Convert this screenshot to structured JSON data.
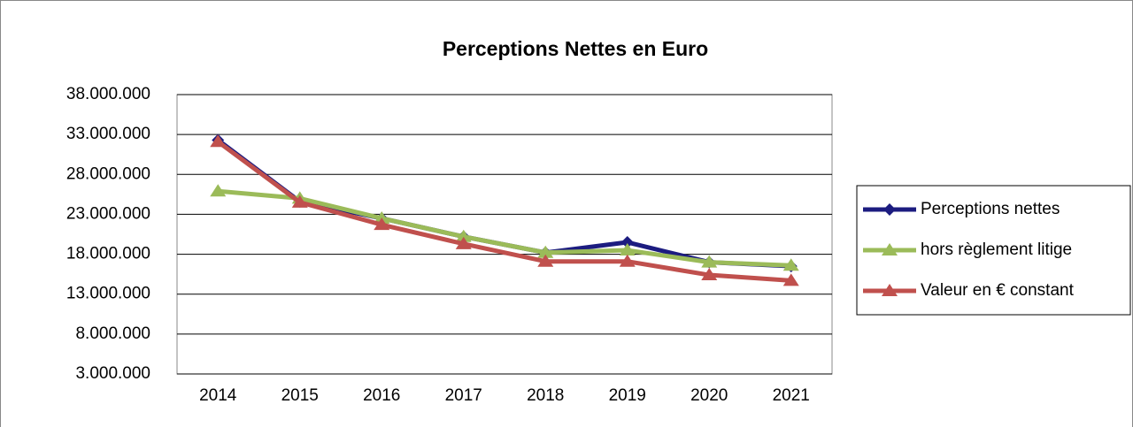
{
  "chart_data": {
    "type": "line",
    "title": "Perceptions Nettes en Euro",
    "categories": [
      "2014",
      "2015",
      "2016",
      "2017",
      "2018",
      "2019",
      "2020",
      "2021"
    ],
    "series": [
      {
        "name": "Perceptions nettes",
        "color": "#1c1c80",
        "marker": "diamond",
        "values": [
          32300000,
          24600000,
          22500000,
          20200000,
          18200000,
          19500000,
          17000000,
          16500000
        ]
      },
      {
        "name": "hors règlement litige",
        "color": "#9bbb59",
        "marker": "triangle",
        "values": [
          25900000,
          25000000,
          22500000,
          20200000,
          18200000,
          18500000,
          17000000,
          16600000
        ]
      },
      {
        "name": "Valeur en € constant",
        "color": "#c0504d",
        "marker": "triangle",
        "values": [
          32100000,
          24500000,
          21700000,
          19300000,
          17100000,
          17100000,
          15400000,
          14700000
        ]
      }
    ],
    "ylim": [
      3000000,
      38000000
    ],
    "yticks": [
      {
        "value": 3000000,
        "label": "3.000.000"
      },
      {
        "value": 8000000,
        "label": "8.000.000"
      },
      {
        "value": 13000000,
        "label": "13.000.000"
      },
      {
        "value": 18000000,
        "label": "18.000.000"
      },
      {
        "value": 23000000,
        "label": "23.000.000"
      },
      {
        "value": 28000000,
        "label": "28.000.000"
      },
      {
        "value": 33000000,
        "label": "33.000.000"
      },
      {
        "value": 38000000,
        "label": "38.000.000"
      }
    ],
    "grid": true,
    "legend": "right"
  }
}
